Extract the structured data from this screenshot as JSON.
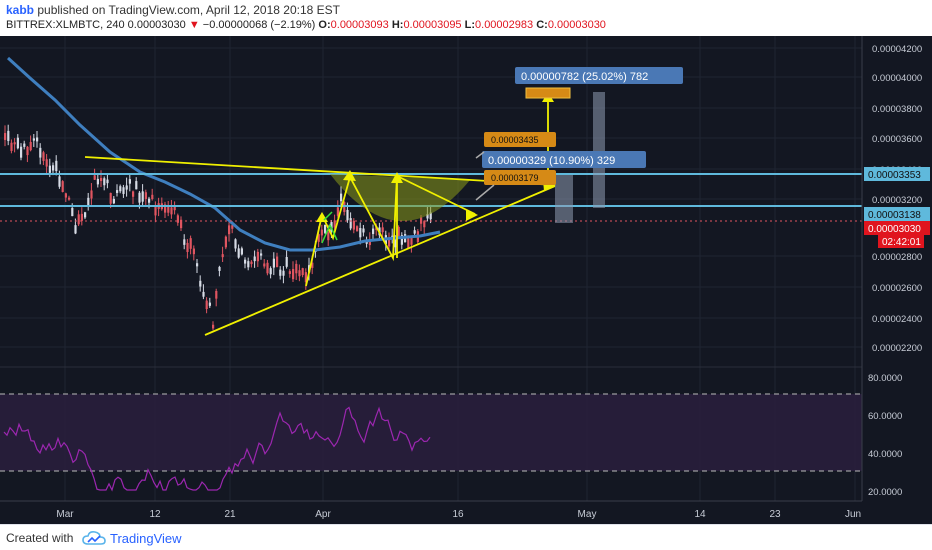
{
  "header": {
    "author": "kabb",
    "published_text": " published on TradingView.com, April 12, 2018 20:18 EST",
    "symbol": "BITTREX:XLMBTC, 240",
    "price": "0.00003030",
    "change_arrow": "▼",
    "change": "−0.00000068 (−2.19%)",
    "o_label": "O:",
    "o_value": "0.00003093",
    "h_label": "H:",
    "h_value": "0.00003095",
    "l_label": "L:",
    "l_value": "0.00002983",
    "c_label": "C:",
    "c_value": "0.00003030"
  },
  "chart": {
    "price_axis_labels": [
      "0.00004200",
      "0.00004000",
      "0.00003800",
      "0.00003600",
      "0.00003400",
      "0.00003200",
      "0.00002800",
      "0.00002600",
      "0.00002400",
      "0.00002200"
    ],
    "price_tags": [
      {
        "text": "0.00003353",
        "kind": "line"
      },
      {
        "text": "0.00003138",
        "kind": "line"
      },
      {
        "text": "0.00003030",
        "kind": "current"
      },
      {
        "text": "02:42:01",
        "kind": "countdown"
      }
    ],
    "rsi_axis_labels": [
      "80.0000",
      "60.0000",
      "40.0000",
      "20.0000"
    ],
    "time_axis_labels": [
      "Mar",
      "12",
      "21",
      "Apr",
      "16",
      "May",
      "14",
      "23",
      "Jun"
    ],
    "annotations": {
      "projection_big": "0.00000782 (25.02%) 782",
      "projection_small": "0.00000329 (10.90%) 329",
      "target_high": "0.00003435",
      "target_low": "0.00003179"
    },
    "colors": {
      "background": "#131722",
      "up_candle": "#d6dbe5",
      "down_candle": "#e05560",
      "moving_average": "#3f7fbf",
      "trendline": "#f0f000",
      "horizontal_line": "#5fb9dc",
      "rsi": "#9c27b0",
      "label_blue": "#4a78b5",
      "label_orange": "#d68a16"
    }
  },
  "footer": {
    "created_with": "Created with",
    "brand": "TradingView"
  }
}
